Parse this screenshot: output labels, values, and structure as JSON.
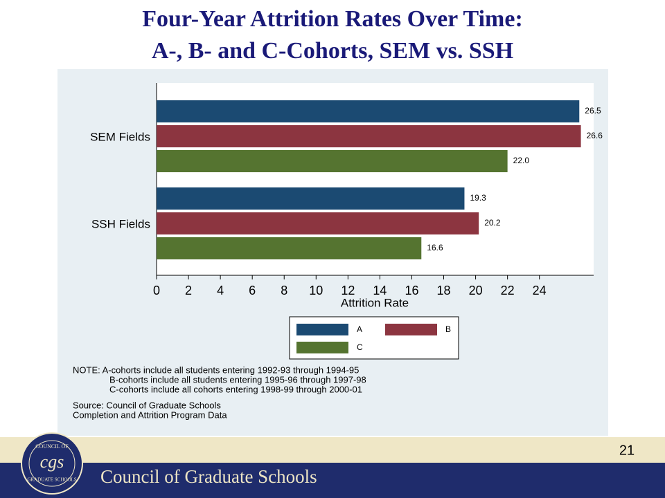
{
  "chart_data": {
    "type": "bar",
    "orientation": "horizontal",
    "title": [
      "Four-Year Attrition Rates Over Time:",
      "A-, B- and C-Cohorts, SEM vs. SSH"
    ],
    "categories": [
      "SEM Fields",
      "SSH Fields"
    ],
    "series": [
      {
        "name": "A",
        "color": "#1b4a72",
        "values": [
          26.5,
          19.3
        ],
        "value_labels": [
          "26.5",
          "19.3"
        ]
      },
      {
        "name": "B",
        "color": "#8c3540",
        "values": [
          26.6,
          20.2
        ],
        "value_labels": [
          "26.6",
          "20.2"
        ]
      },
      {
        "name": "C",
        "color": "#557430",
        "values": [
          22.0,
          16.6
        ],
        "value_labels": [
          "22.0",
          "16.6"
        ]
      }
    ],
    "xlabel": "Attrition Rate",
    "xlim": [
      0,
      27.4
    ],
    "xticks": [
      0,
      2,
      4,
      6,
      8,
      10,
      12,
      14,
      16,
      18,
      20,
      22,
      24
    ],
    "legend": "bottom",
    "notes": [
      "NOTE: A-cohorts include all students entering 1992-93 through 1994-95",
      "B-cohorts include all students entering 1995-96 through 1997-98",
      "C-cohorts include all cohorts entering 1998-99 through 2000-01"
    ],
    "source": [
      "Source: Council of Graduate Schools",
      "Completion and Attrition Program Data"
    ]
  },
  "page_number": "21",
  "footer": {
    "organization": "Council of Graduate Schools",
    "logo_top": "COUNCIL OF",
    "logo_mark": "cgs",
    "logo_bottom": "GRADUATE SCHOOLS"
  }
}
